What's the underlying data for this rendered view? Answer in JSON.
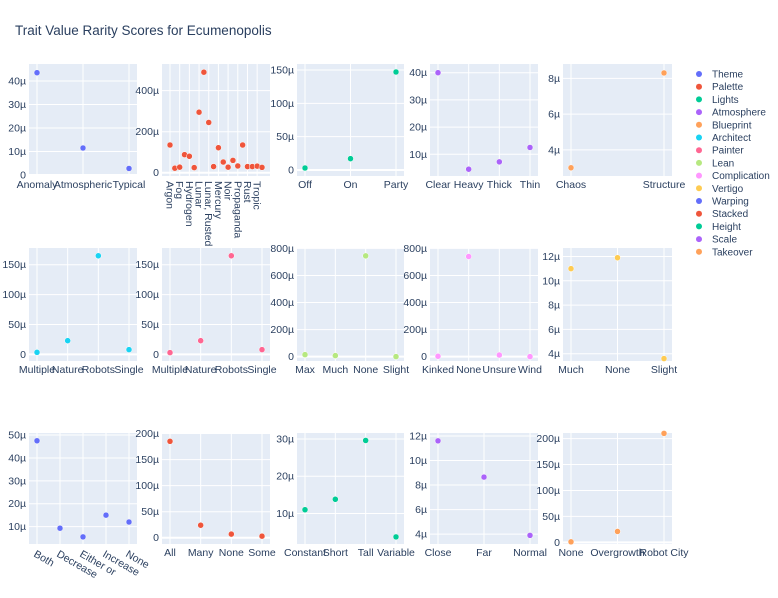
{
  "title": "Trait Value Rarity Scores for Ecumenopolis",
  "legend": {
    "placement": "right",
    "items": [
      {
        "name": "Theme",
        "color": "#636efa"
      },
      {
        "name": "Palette",
        "color": "#EF553B"
      },
      {
        "name": "Lights",
        "color": "#00cc96"
      },
      {
        "name": "Atmosphere",
        "color": "#ab63fa"
      },
      {
        "name": "Blueprint",
        "color": "#FFA15A"
      },
      {
        "name": "Architect",
        "color": "#19d3f3"
      },
      {
        "name": "Painter",
        "color": "#FF6692"
      },
      {
        "name": "Lean",
        "color": "#B6E880"
      },
      {
        "name": "Complication",
        "color": "#FF97FF"
      },
      {
        "name": "Vertigo",
        "color": "#FECB52"
      },
      {
        "name": "Warping",
        "color": "#636efa"
      },
      {
        "name": "Stacked",
        "color": "#EF553B"
      },
      {
        "name": "Height",
        "color": "#00cc96"
      },
      {
        "name": "Scale",
        "color": "#ab63fa"
      },
      {
        "name": "Takeover",
        "color": "#FFA15A"
      }
    ]
  },
  "chart_data": [
    {
      "type": "scatter",
      "name": "Theme",
      "color": "#636efa",
      "grid": true,
      "unit": "µ",
      "categories": [
        "Anomaly",
        "Atmospheric",
        "Typical"
      ],
      "values": [
        43.5,
        11.5,
        2.8
      ],
      "ylim": [
        -0.4,
        47.2
      ],
      "yticks": [
        0,
        10,
        20,
        30,
        40
      ],
      "ytick_labels": [
        "0",
        "10µ",
        "20µ",
        "30µ",
        "40µ"
      ]
    },
    {
      "type": "scatter",
      "name": "Palette",
      "color": "#EF553B",
      "grid": true,
      "unit": "µ",
      "categories": [
        "Argon",
        "",
        "Fog",
        "",
        "Hydrogen",
        "",
        "Lunar",
        "",
        "Lunar, Rusted",
        "",
        "Mercury",
        "",
        "Noir",
        "",
        "Propaganda",
        "",
        "Rust",
        "",
        "Tropic",
        ""
      ],
      "values": [
        135,
        22,
        27,
        88,
        80,
        25,
        295,
        490,
        245,
        30,
        122,
        52,
        27,
        60,
        33,
        135,
        30,
        30,
        32,
        26
      ],
      "xtick_rotation": 90,
      "ylim": [
        -16,
        530
      ],
      "yticks": [
        0,
        200,
        400
      ],
      "ytick_labels": [
        "0",
        "200µ",
        "400µ"
      ]
    },
    {
      "type": "scatter",
      "name": "Lights",
      "color": "#00cc96",
      "grid": true,
      "unit": "µ",
      "categories": [
        "Off",
        "On",
        "Party"
      ],
      "values": [
        3,
        17,
        147
      ],
      "ylim": [
        -9,
        159
      ],
      "yticks": [
        0,
        50,
        100,
        150
      ],
      "ytick_labels": [
        "0",
        "50µ",
        "100µ",
        "150µ"
      ]
    },
    {
      "type": "scatter",
      "name": "Atmosphere",
      "color": "#ab63fa",
      "grid": true,
      "unit": "µ",
      "categories": [
        "Clear",
        "Heavy",
        "Thick",
        "Thin"
      ],
      "values": [
        40,
        4.5,
        7.2,
        12.5
      ],
      "ylim": [
        2.0,
        43.2
      ],
      "yticks": [
        10,
        20,
        30,
        40
      ],
      "ytick_labels": [
        "10µ",
        "20µ",
        "30µ",
        "40µ"
      ]
    },
    {
      "type": "scatter",
      "name": "Blueprint",
      "color": "#FFA15A",
      "grid": true,
      "unit": "µ",
      "categories": [
        "Chaos",
        "Structure"
      ],
      "values": [
        3.0,
        8.3
      ],
      "ylim": [
        2.54,
        8.8
      ],
      "yticks": [
        4,
        6,
        8
      ],
      "ytick_labels": [
        "4µ",
        "6µ",
        "8µ"
      ]
    },
    {
      "type": "scatter",
      "name": "Architect",
      "color": "#19d3f3",
      "grid": true,
      "unit": "µ",
      "categories": [
        "Multiple",
        "Nature",
        "Robots",
        "Single"
      ],
      "values": [
        3.5,
        23,
        165,
        8
      ],
      "ylim": [
        -11,
        178
      ],
      "yticks": [
        0,
        50,
        100,
        150
      ],
      "ytick_labels": [
        "0",
        "50µ",
        "100µ",
        "150µ"
      ]
    },
    {
      "type": "scatter",
      "name": "Painter",
      "color": "#FF6692",
      "grid": true,
      "unit": "µ",
      "categories": [
        "Multiple",
        "Nature",
        "Robots",
        "Single"
      ],
      "values": [
        3,
        23,
        165,
        8
      ],
      "ylim": [
        -11,
        178
      ],
      "yticks": [
        0,
        50,
        100,
        150
      ],
      "ytick_labels": [
        "0",
        "50µ",
        "100µ",
        "150µ"
      ]
    },
    {
      "type": "scatter",
      "name": "Lean",
      "color": "#B6E880",
      "grid": true,
      "unit": "µ",
      "categories": [
        "Max",
        "Much",
        "None",
        "Slight"
      ],
      "values": [
        15,
        8,
        745,
        0.5
      ],
      "ylim": [
        -32,
        803
      ],
      "yticks": [
        0,
        200,
        400,
        600,
        800
      ],
      "ytick_labels": [
        "0",
        "200µ",
        "400µ",
        "600µ",
        "800µ"
      ]
    },
    {
      "type": "scatter",
      "name": "Complication",
      "color": "#FF97FF",
      "grid": true,
      "unit": "µ",
      "categories": [
        "Kinked",
        "None",
        "Unsure",
        "Wind"
      ],
      "values": [
        3,
        740,
        12,
        0.5
      ],
      "ylim": [
        -32,
        803
      ],
      "yticks": [
        0,
        200,
        400,
        600,
        800
      ],
      "ytick_labels": [
        "0",
        "200µ",
        "400µ",
        "600µ",
        "800µ"
      ]
    },
    {
      "type": "scatter",
      "name": "Vertigo",
      "color": "#FECB52",
      "grid": true,
      "unit": "µ",
      "categories": [
        "Much",
        "None",
        "Slight"
      ],
      "values": [
        11.0,
        11.9,
        3.6
      ],
      "ylim": [
        3.4,
        12.7
      ],
      "yticks": [
        4,
        6,
        8,
        10,
        12
      ],
      "ytick_labels": [
        "4µ",
        "6µ",
        "8µ",
        "10µ",
        "12µ"
      ]
    },
    {
      "type": "scatter",
      "name": "Warping",
      "color": "#636efa",
      "grid": true,
      "unit": "µ",
      "categories": [
        "Both",
        "Decrease",
        "Either or",
        "Increase",
        "None"
      ],
      "values": [
        47.5,
        9.3,
        5.5,
        15,
        12
      ],
      "xtick_rotation": 30,
      "ylim": [
        2.4,
        50.9
      ],
      "yticks": [
        10,
        20,
        30,
        40,
        50
      ],
      "ytick_labels": [
        "10µ",
        "20µ",
        "30µ",
        "40µ",
        "50µ"
      ]
    },
    {
      "type": "scatter",
      "name": "Stacked",
      "color": "#EF553B",
      "grid": true,
      "unit": "µ",
      "categories": [
        "All",
        "Many",
        "None",
        "Some"
      ],
      "values": [
        185,
        24,
        7,
        3
      ],
      "ylim": [
        -12,
        201
      ],
      "yticks": [
        0,
        50,
        100,
        150,
        200
      ],
      "ytick_labels": [
        "0",
        "50µ",
        "100µ",
        "150µ",
        "200µ"
      ]
    },
    {
      "type": "scatter",
      "name": "Height",
      "color": "#00cc96",
      "grid": true,
      "unit": "µ",
      "categories": [
        "Constant",
        "Short",
        "Tall",
        "Variable"
      ],
      "values": [
        11,
        13.8,
        29.6,
        3.7
      ],
      "ylim": [
        1.8,
        31.6
      ],
      "yticks": [
        10,
        20,
        30
      ],
      "ytick_labels": [
        "10µ",
        "20µ",
        "30µ"
      ]
    },
    {
      "type": "scatter",
      "name": "Scale",
      "color": "#ab63fa",
      "grid": true,
      "unit": "µ",
      "categories": [
        "Close",
        "Far",
        "Normal"
      ],
      "values": [
        11.6,
        8.65,
        3.9
      ],
      "ylim": [
        3.2,
        12.24
      ],
      "yticks": [
        4,
        6,
        8,
        10,
        12
      ],
      "ytick_labels": [
        "4µ",
        "6µ",
        "8µ",
        "10µ",
        "12µ"
      ]
    },
    {
      "type": "scatter",
      "name": "Takeover",
      "color": "#FFA15A",
      "grid": true,
      "unit": "µ",
      "categories": [
        "None",
        "Overgrowth",
        "Robot City"
      ],
      "values": [
        1,
        21,
        210
      ],
      "ylim": [
        -3.2,
        210.8
      ],
      "yticks": [
        0,
        50,
        100,
        150,
        200
      ],
      "ytick_labels": [
        "0",
        "50µ",
        "100µ",
        "150µ",
        "200µ"
      ]
    }
  ]
}
